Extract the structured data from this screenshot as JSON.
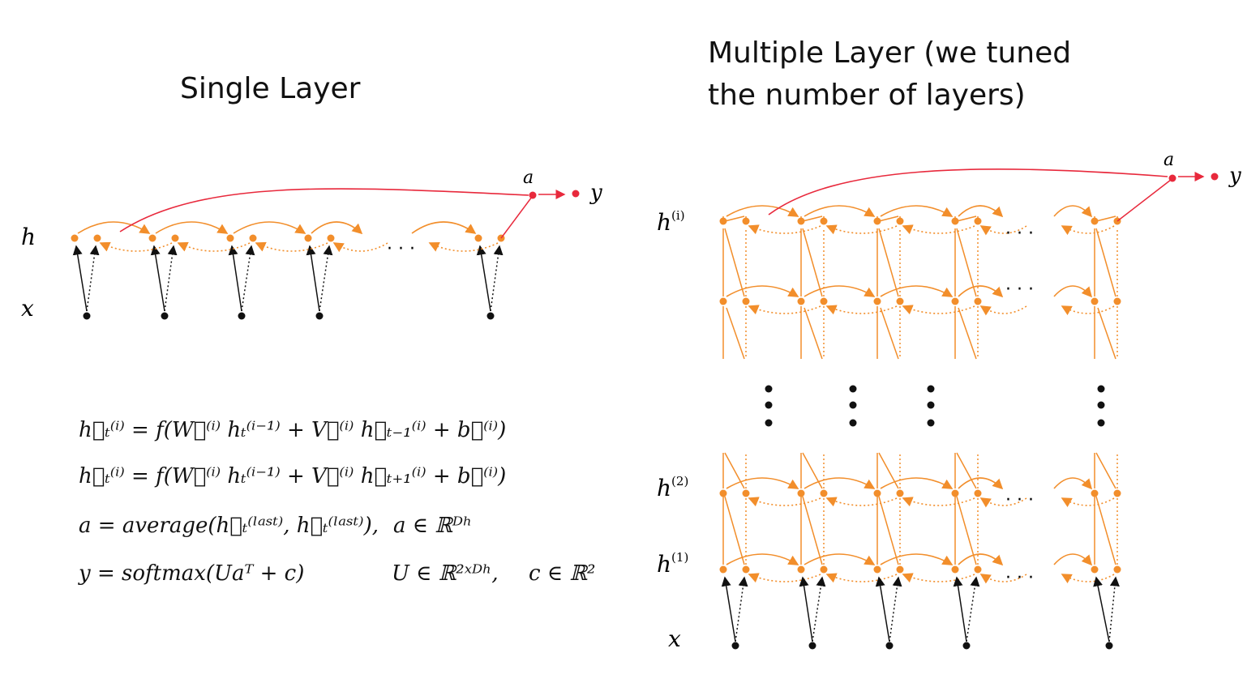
{
  "titles": {
    "single": "Single Layer",
    "multi_line1": "Multiple Layer (we tuned",
    "multi_line2": "the number of layers)"
  },
  "single_labels": {
    "h": "h",
    "x": "x",
    "a": "a",
    "y": "y",
    "dots": "· · ·"
  },
  "multi_labels": {
    "h_i": "h",
    "h_i_sup": "(i)",
    "h_2": "h",
    "h_2_sup": "(2)",
    "h_1": "h",
    "h_1_sup": "(1)",
    "x": "x",
    "a": "a",
    "y": "y",
    "dots": "· · ·"
  },
  "equations": {
    "eq1": "h⃗ₜ⁽ⁱ⁾ = f(W⃗⁽ⁱ⁾ hₜ⁽ⁱ⁻¹⁾ + V⃗⁽ⁱ⁾ h⃗ₜ₋₁⁽ⁱ⁾ + b⃗⁽ⁱ⁾)",
    "eq2": "h⃖ₜ⁽ⁱ⁾ = f(W⃖⁽ⁱ⁾ hₜ⁽ⁱ⁻¹⁾ + V⃖⁽ⁱ⁾ h⃖ₜ₊₁⁽ⁱ⁾ + b⃖⁽ⁱ⁾)",
    "eq3": "a = average(h⃗ₜ⁽ˡᵃˢᵗ⁾, h⃖ₜ⁽ˡᵃˢᵗ⁾),",
    "eq3_cond": "a ∈ ℝᴰʰ",
    "eq4": "y = softmax(Uaᵀ + c)",
    "eq4_cond1": "U ∈ ℝ²ˣᴰʰ,",
    "eq4_cond2": "c ∈ ℝ²"
  },
  "colors": {
    "node": "#f28e2b",
    "output": "#e8293c",
    "input": "#111111"
  }
}
